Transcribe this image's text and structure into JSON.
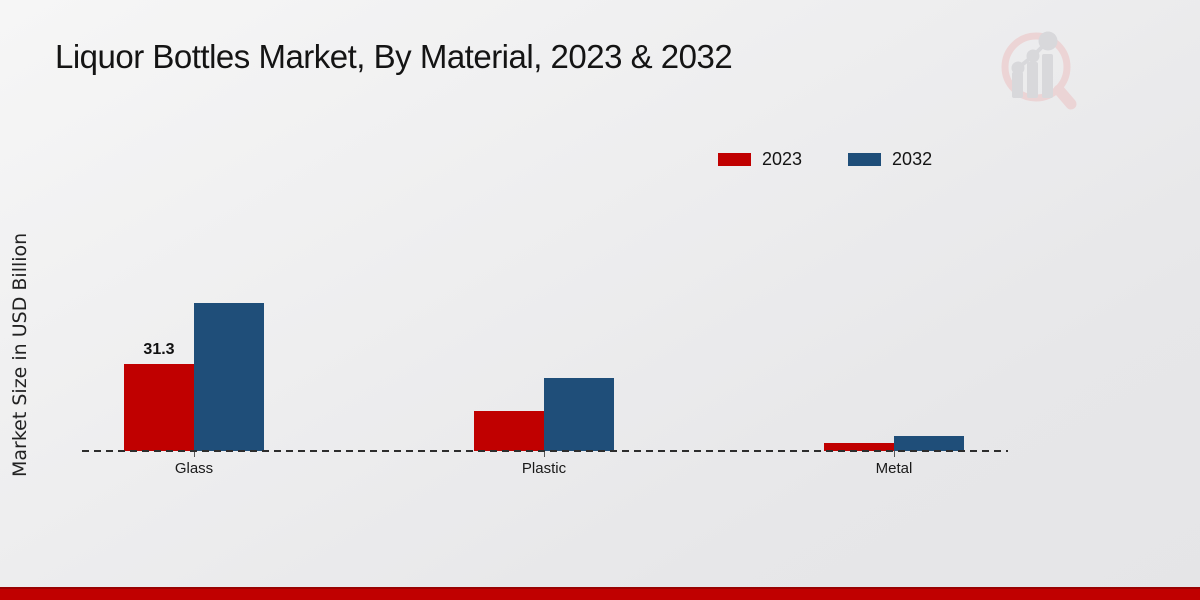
{
  "title": "Liquor Bottles Market, By Material, 2023 & 2032",
  "y_axis_label": "Market Size in USD Billion",
  "icons": {
    "watermark": "magnifier-growth-chart-logo"
  },
  "colors": {
    "series_2023": "#c00000",
    "series_2032": "#1f4e79",
    "banner": "#c00000",
    "axis_dash": "#2d2d2d",
    "background_top": "#f6f6f6",
    "background_bottom": "#e5e5e7"
  },
  "chart_data": {
    "type": "bar",
    "title": "Liquor Bottles Market, By Material, 2023 & 2032",
    "categories": [
      "Glass",
      "Plastic",
      "Metal"
    ],
    "series": [
      {
        "name": "2023",
        "color": "#c00000",
        "values": [
          31.3,
          14.4,
          2.9
        ]
      },
      {
        "name": "2032",
        "color": "#1f4e79",
        "values": [
          53.2,
          26.3,
          5.4
        ]
      }
    ],
    "annotations": [
      {
        "series": 0,
        "category": 0,
        "text": "31.3"
      }
    ],
    "xlabel": "",
    "ylabel": "Market Size in USD Billion",
    "ylim": [
      0,
      60
    ],
    "grid": false,
    "legend_position": "top-right",
    "baseline_style": "dashed"
  }
}
